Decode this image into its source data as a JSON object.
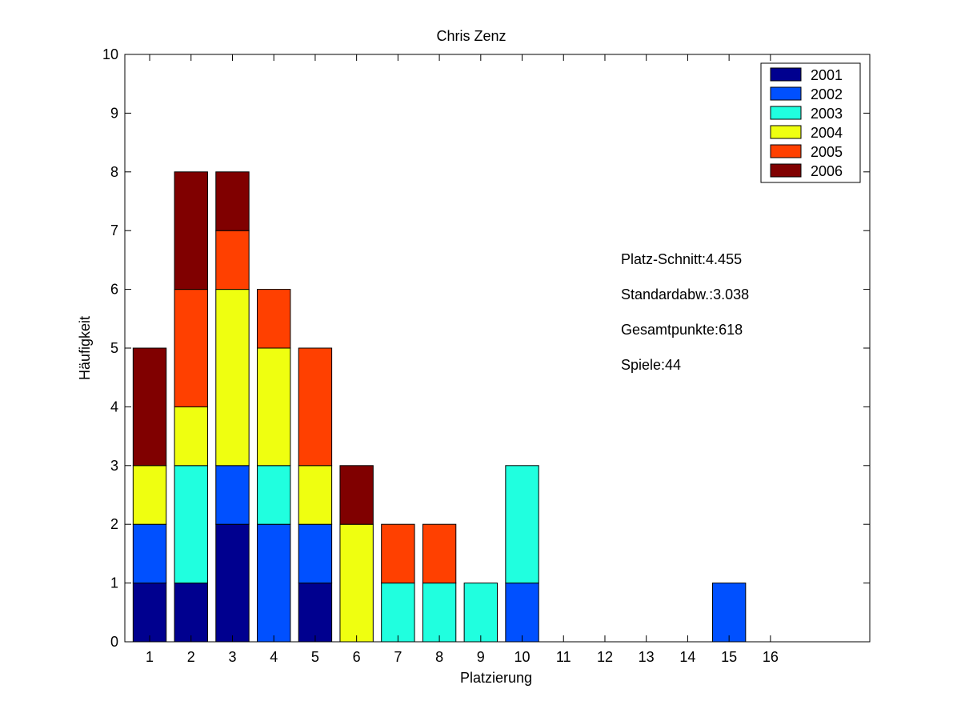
{
  "chart_data": {
    "type": "bar",
    "stacked": true,
    "title": "Chris Zenz",
    "xlabel": "Platzierung",
    "ylabel": "Häufigkeit",
    "categories": [
      "1",
      "2",
      "3",
      "4",
      "5",
      "6",
      "7",
      "8",
      "9",
      "10",
      "11",
      "12",
      "13",
      "14",
      "15",
      "16"
    ],
    "xlim": [
      0.4,
      18.4
    ],
    "ylim": [
      0,
      10
    ],
    "yticks": [
      0,
      1,
      2,
      3,
      4,
      5,
      6,
      7,
      8,
      9,
      10
    ],
    "grid": false,
    "legend_position": "top-right",
    "series": [
      {
        "name": "2001",
        "color": "#00008f",
        "values": [
          1,
          1,
          2,
          0,
          1,
          0,
          0,
          0,
          0,
          0,
          0,
          0,
          0,
          0,
          0,
          0
        ]
      },
      {
        "name": "2002",
        "color": "#0050ff",
        "values": [
          1,
          0,
          1,
          2,
          1,
          0,
          0,
          0,
          0,
          1,
          0,
          0,
          0,
          0,
          1,
          0
        ]
      },
      {
        "name": "2003",
        "color": "#20ffdf",
        "values": [
          0,
          2,
          0,
          1,
          0,
          0,
          1,
          1,
          1,
          2,
          0,
          0,
          0,
          0,
          0,
          0
        ]
      },
      {
        "name": "2004",
        "color": "#efff10",
        "values": [
          1,
          1,
          3,
          2,
          1,
          2,
          0,
          0,
          0,
          0,
          0,
          0,
          0,
          0,
          0,
          0
        ]
      },
      {
        "name": "2005",
        "color": "#ff4000",
        "values": [
          0,
          2,
          1,
          1,
          2,
          0,
          1,
          1,
          0,
          0,
          0,
          0,
          0,
          0,
          0,
          0
        ]
      },
      {
        "name": "2006",
        "color": "#800000",
        "values": [
          2,
          2,
          1,
          0,
          0,
          1,
          0,
          0,
          0,
          0,
          0,
          0,
          0,
          0,
          0,
          0
        ]
      }
    ],
    "annotations": [
      "Platz-Schnitt:4.455",
      "Standardabw.:3.038",
      "Gesamtpunkte:618",
      "Spiele:44"
    ]
  }
}
